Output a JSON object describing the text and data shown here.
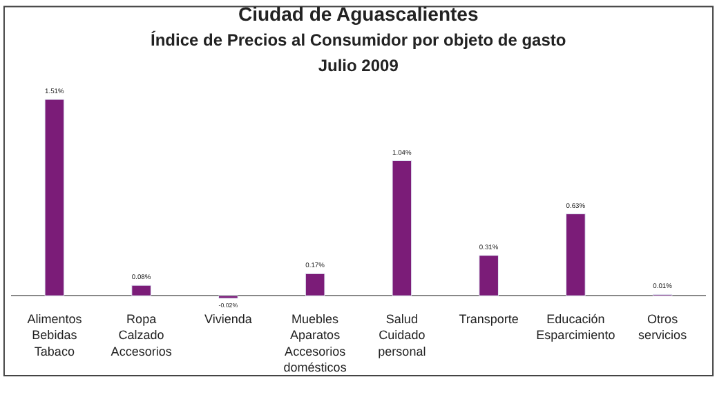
{
  "chart_data": {
    "type": "bar",
    "title": "Ciudad de Aguascalientes",
    "subtitle": "Índice de Precios al Consumidor por objeto de gasto\nJulio 2009",
    "categories": [
      "Alimentos\nBebidas\nTabaco",
      "Ropa\nCalzado\nAccesorios",
      "Vivienda",
      "Muebles\nAparatos\nAccesorios\ndomésticos",
      "Salud\nCuidado\npersonal",
      "Transporte",
      "Educación\nEsparcimiento",
      "Otros\nservicios"
    ],
    "values": [
      1.51,
      0.08,
      -0.02,
      0.17,
      1.04,
      0.31,
      0.63,
      0.01
    ],
    "value_labels": [
      "1.51%",
      "0.08%",
      "-0.02%",
      "0.17%",
      "1.04%",
      "0.31%",
      "0.63%",
      "0.01%"
    ],
    "color": "#7b1c78",
    "legend": false
  }
}
